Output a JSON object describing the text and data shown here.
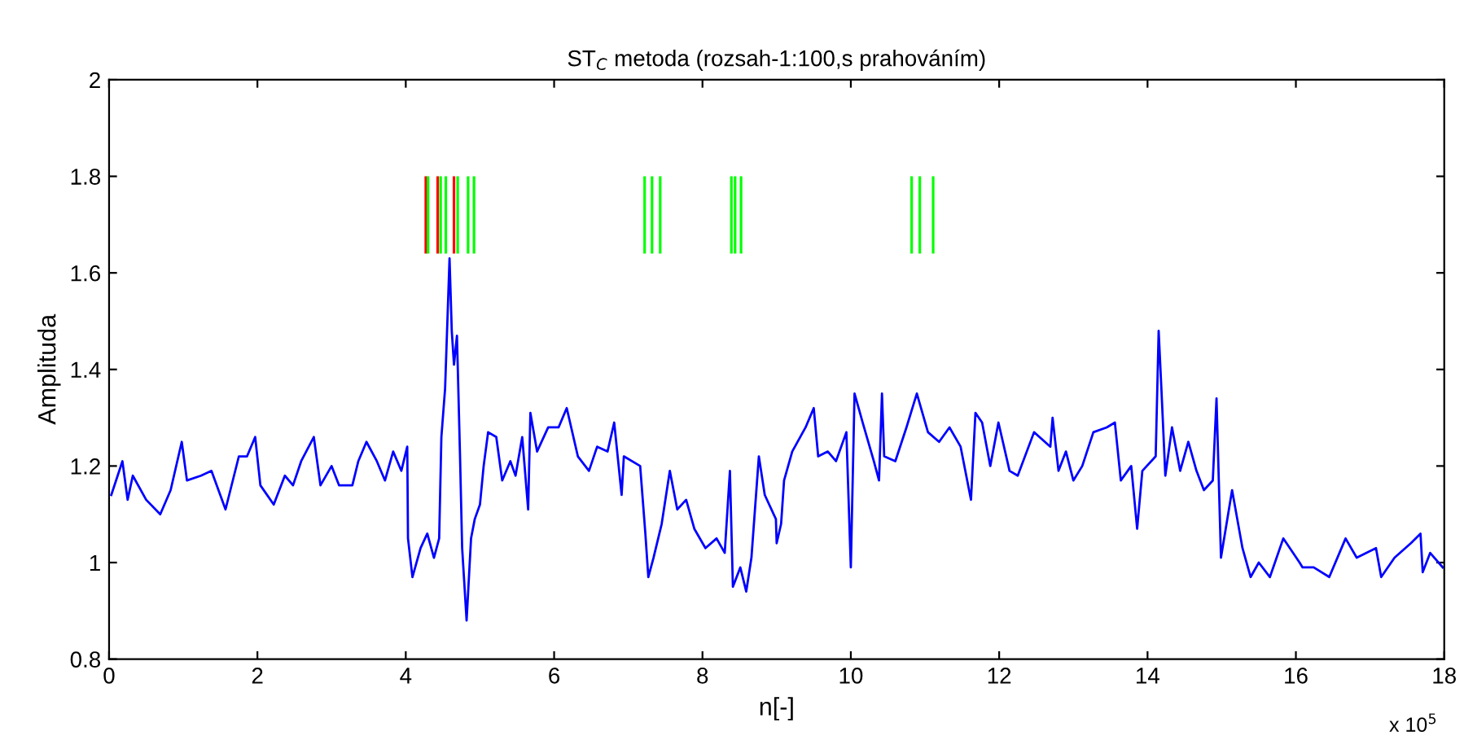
{
  "chart_data": {
    "type": "line",
    "title": "ST$_{C}$ metoda (rozsah-1:100,s prahováním)",
    "xlabel": "n[-]",
    "ylabel": "Amplituda",
    "annotations": [
      "x 10$^{5}$"
    ],
    "xlim": [
      0,
      18
    ],
    "xticks": [
      0,
      2,
      4,
      6,
      8,
      10,
      12,
      14,
      16,
      18
    ],
    "ylim": [
      0.8,
      2
    ],
    "yticks": [
      0.8,
      1,
      1.2,
      1.4,
      1.6,
      1.8,
      2
    ],
    "grid": false,
    "series": [
      {
        "color": "#0000ff",
        "x": [
          0.03,
          0.18,
          0.25,
          0.32,
          0.5,
          0.69,
          0.83,
          0.98,
          1.05,
          1.24,
          1.38,
          1.57,
          1.75,
          1.86,
          1.97,
          2.04,
          2.22,
          2.37,
          2.48,
          2.59,
          2.76,
          2.85,
          3.0,
          3.1,
          3.28,
          3.36,
          3.47,
          3.61,
          3.72,
          3.83,
          3.94,
          4.02,
          4.03,
          4.09,
          4.2,
          4.29,
          4.38,
          4.45,
          4.48,
          4.53,
          4.59,
          4.62,
          4.65,
          4.69,
          4.73,
          4.76,
          4.82,
          4.88,
          4.93,
          5.0,
          5.05,
          5.11,
          5.22,
          5.3,
          5.41,
          5.48,
          5.57,
          5.65,
          5.68,
          5.77,
          5.92,
          6.06,
          6.17,
          6.32,
          6.47,
          6.58,
          6.72,
          6.81,
          6.91,
          6.94,
          7.16,
          7.23,
          7.27,
          7.34,
          7.45,
          7.56,
          7.66,
          7.78,
          7.89,
          8.04,
          8.19,
          8.3,
          8.37,
          8.41,
          8.51,
          8.59,
          8.66,
          8.76,
          8.84,
          8.99,
          9.0,
          9.06,
          9.1,
          9.21,
          9.39,
          9.5,
          9.56,
          9.69,
          9.8,
          9.94,
          10.0,
          10.05,
          10.16,
          10.31,
          10.38,
          10.42,
          10.45,
          10.6,
          10.75,
          10.89,
          11.04,
          11.19,
          11.33,
          11.48,
          11.62,
          11.68,
          11.77,
          11.88,
          11.99,
          12.14,
          12.25,
          12.47,
          12.69,
          12.72,
          12.8,
          12.9,
          13.0,
          13.12,
          13.27,
          13.45,
          13.56,
          13.64,
          13.78,
          13.86,
          13.93,
          14.11,
          14.15,
          14.19,
          14.24,
          14.33,
          14.44,
          14.55,
          14.66,
          14.76,
          14.88,
          14.93,
          14.99,
          15.14,
          15.28,
          15.39,
          15.5,
          15.65,
          15.83,
          16.05,
          16.09,
          16.24,
          16.45,
          16.67,
          16.82,
          17.08,
          17.15,
          17.33,
          17.55,
          17.68,
          17.71,
          17.81,
          17.98
        ],
        "values": [
          1.14,
          1.21,
          1.13,
          1.18,
          1.13,
          1.1,
          1.15,
          1.25,
          1.17,
          1.18,
          1.19,
          1.11,
          1.22,
          1.22,
          1.26,
          1.16,
          1.12,
          1.18,
          1.16,
          1.21,
          1.26,
          1.16,
          1.2,
          1.16,
          1.16,
          1.21,
          1.25,
          1.21,
          1.17,
          1.23,
          1.19,
          1.24,
          1.05,
          0.97,
          1.03,
          1.06,
          1.01,
          1.05,
          1.26,
          1.36,
          1.63,
          1.48,
          1.41,
          1.47,
          1.23,
          1.03,
          0.88,
          1.05,
          1.09,
          1.12,
          1.2,
          1.27,
          1.26,
          1.17,
          1.21,
          1.18,
          1.26,
          1.11,
          1.31,
          1.23,
          1.28,
          1.28,
          1.32,
          1.22,
          1.19,
          1.24,
          1.23,
          1.29,
          1.14,
          1.22,
          1.2,
          1.06,
          0.97,
          1.01,
          1.08,
          1.19,
          1.11,
          1.13,
          1.07,
          1.03,
          1.05,
          1.02,
          1.19,
          0.95,
          0.99,
          0.94,
          1.01,
          1.22,
          1.14,
          1.09,
          1.04,
          1.08,
          1.17,
          1.23,
          1.28,
          1.32,
          1.22,
          1.23,
          1.21,
          1.27,
          0.99,
          1.35,
          1.29,
          1.21,
          1.17,
          1.35,
          1.22,
          1.21,
          1.28,
          1.35,
          1.27,
          1.25,
          1.28,
          1.24,
          1.13,
          1.31,
          1.29,
          1.2,
          1.29,
          1.19,
          1.18,
          1.27,
          1.24,
          1.3,
          1.19,
          1.23,
          1.17,
          1.2,
          1.27,
          1.28,
          1.29,
          1.17,
          1.2,
          1.07,
          1.19,
          1.22,
          1.48,
          1.35,
          1.18,
          1.28,
          1.19,
          1.25,
          1.19,
          1.15,
          1.17,
          1.34,
          1.01,
          1.15,
          1.03,
          0.97,
          1.0,
          0.97,
          1.05,
          1.0,
          0.99,
          0.99,
          0.97,
          1.05,
          1.01,
          1.03,
          0.97,
          1.01,
          1.04,
          1.06,
          0.98,
          1.02,
          0.99
        ]
      },
      {
        "type": "bar",
        "x": [
          4.27,
          4.3,
          4.43,
          4.47,
          4.54,
          4.65,
          4.7,
          4.84,
          4.92,
          7.22,
          7.32,
          7.43,
          8.39,
          8.44,
          8.52,
          10.82,
          10.93,
          11.11
        ],
        "values": [
          0.16,
          0.16,
          0.16,
          0.16,
          0.16,
          0.16,
          0.16,
          0.16,
          0.16,
          0.16,
          0.16,
          0.16,
          0.16,
          0.16,
          0.16,
          0.16,
          0.16,
          0.16
        ],
        "base": [
          1.64,
          1.64,
          1.64,
          1.64,
          1.64,
          1.64,
          1.64,
          1.64,
          1.64,
          1.64,
          1.64,
          1.64,
          1.64,
          1.64,
          1.64,
          1.64,
          1.64,
          1.64
        ],
        "colors": [
          "#ff0000",
          "#00ff00",
          "#ff0000",
          "#00ff00",
          "#00ff00",
          "#ff0000",
          "#00ff00",
          "#00ff00",
          "#00ff00",
          "#00ff00",
          "#00ff00",
          "#00ff00",
          "#00ff00",
          "#00ff00",
          "#00ff00",
          "#00ff00",
          "#00ff00",
          "#00ff00"
        ]
      }
    ]
  }
}
